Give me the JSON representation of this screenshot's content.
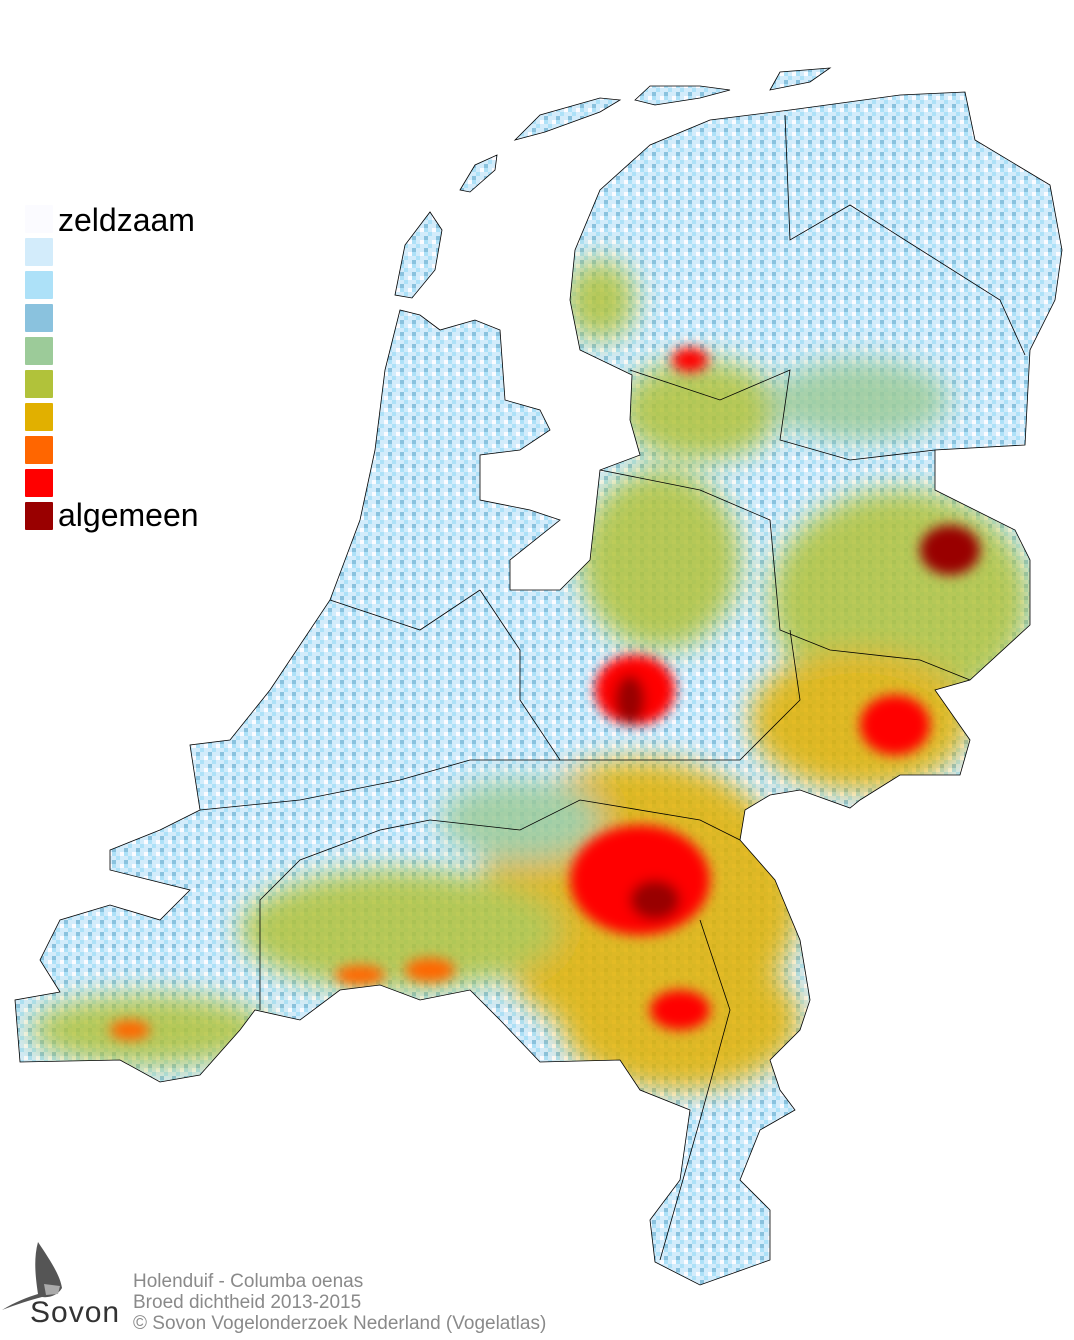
{
  "legend": {
    "low_label": "zeldzaam",
    "high_label": "algemeen",
    "colors": [
      "#fbfbff",
      "#d3ecfb",
      "#ade1f8",
      "#8ac2de",
      "#9ccb99",
      "#b1c23a",
      "#e1b000",
      "#ff6600",
      "#ff0000",
      "#990000"
    ]
  },
  "caption": {
    "line1": "Holenduif - Columba oenas",
    "line2": "Broed dichtheid 2013-2015",
    "line3": "© Sovon Vogelonderzoek Nederland (Vogelatlas)"
  },
  "logo": {
    "text": "Sovon"
  }
}
